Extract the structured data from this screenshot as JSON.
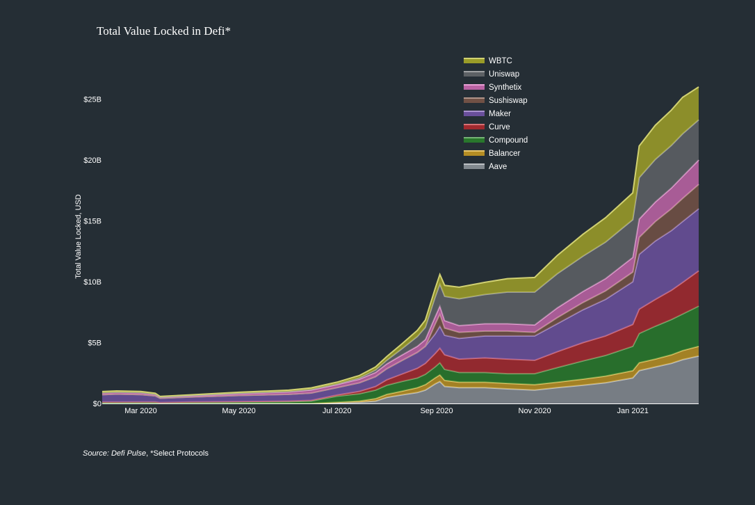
{
  "chart_data": {
    "type": "area",
    "stacked": true,
    "title": "Total Value Locked in Defi*",
    "xlabel": "",
    "ylabel": "Total Value Locked, USD",
    "x_start": "2020-02-06",
    "x_end": "2021-02-11",
    "xlim": [
      "2020-02-06",
      "2021-02-11"
    ],
    "ylim": [
      0,
      28
    ],
    "ytick_values": [
      0,
      5,
      10,
      15,
      20,
      25
    ],
    "ytick_labels": [
      "$0",
      "$5B",
      "$10B",
      "$15B",
      "$20B",
      "$25B"
    ],
    "xtick_dates": [
      "2020-03-01",
      "2020-05-01",
      "2020-07-01",
      "2020-09-01",
      "2020-11-01",
      "2021-01-01"
    ],
    "xtick_labels": [
      "Mar 2020",
      "May 2020",
      "Jul 2020",
      "Sep 2020",
      "Nov 2020",
      "Jan 2021"
    ],
    "grid": false,
    "legend_position": "top-right",
    "x": [
      "2020-02-06",
      "2020-02-15",
      "2020-03-01",
      "2020-03-10",
      "2020-03-13",
      "2020-04-01",
      "2020-05-01",
      "2020-06-01",
      "2020-06-15",
      "2020-07-01",
      "2020-07-15",
      "2020-07-25",
      "2020-08-01",
      "2020-08-10",
      "2020-08-20",
      "2020-08-25",
      "2020-08-31",
      "2020-09-03",
      "2020-09-06",
      "2020-09-15",
      "2020-10-01",
      "2020-10-15",
      "2020-11-01",
      "2020-11-15",
      "2020-12-01",
      "2020-12-15",
      "2021-01-01",
      "2021-01-05",
      "2021-01-15",
      "2021-01-25",
      "2021-02-01",
      "2021-02-11"
    ],
    "series": [
      {
        "name": "Aave",
        "color": "#9aa0a6",
        "values": [
          0,
          0,
          0,
          0,
          0,
          0,
          0,
          0,
          0,
          0.05,
          0.1,
          0.2,
          0.5,
          0.7,
          0.9,
          1.1,
          1.6,
          1.8,
          1.4,
          1.3,
          1.3,
          1.2,
          1.1,
          1.3,
          1.5,
          1.7,
          2.1,
          2.7,
          3.0,
          3.3,
          3.6,
          3.9
        ]
      },
      {
        "name": "Balancer",
        "color": "#d9a520",
        "values": [
          0,
          0,
          0,
          0,
          0,
          0,
          0,
          0,
          0,
          0.05,
          0.1,
          0.2,
          0.25,
          0.3,
          0.4,
          0.45,
          0.5,
          0.55,
          0.5,
          0.45,
          0.45,
          0.45,
          0.45,
          0.45,
          0.5,
          0.55,
          0.6,
          0.65,
          0.65,
          0.7,
          0.75,
          0.8
        ]
      },
      {
        "name": "Compound",
        "color": "#2a8a2a",
        "values": [
          0.1,
          0.1,
          0.1,
          0.1,
          0.06,
          0.1,
          0.12,
          0.15,
          0.2,
          0.5,
          0.6,
          0.7,
          0.75,
          0.8,
          0.8,
          0.85,
          0.9,
          1.0,
          0.9,
          0.8,
          0.8,
          0.8,
          0.9,
          1.2,
          1.5,
          1.7,
          2.0,
          2.4,
          2.7,
          2.9,
          3.0,
          3.3
        ]
      },
      {
        "name": "Curve",
        "color": "#c0282d",
        "values": [
          0.02,
          0.02,
          0.03,
          0.03,
          0.02,
          0.03,
          0.04,
          0.05,
          0.06,
          0.1,
          0.2,
          0.3,
          0.45,
          0.6,
          0.8,
          0.9,
          1.1,
          1.2,
          1.2,
          1.1,
          1.2,
          1.2,
          1.1,
          1.3,
          1.5,
          1.6,
          1.8,
          2.0,
          2.2,
          2.4,
          2.6,
          2.9
        ]
      },
      {
        "name": "Maker",
        "color": "#7a58b5",
        "values": [
          0.6,
          0.65,
          0.6,
          0.5,
          0.35,
          0.4,
          0.5,
          0.55,
          0.6,
          0.6,
          0.7,
          0.8,
          0.9,
          1.1,
          1.3,
          1.4,
          1.6,
          1.8,
          1.6,
          1.7,
          1.8,
          1.9,
          2.0,
          2.3,
          2.7,
          3.0,
          3.5,
          4.5,
          4.8,
          4.9,
          5.0,
          5.1
        ]
      },
      {
        "name": "Sushiswap",
        "color": "#855a4a",
        "values": [
          0,
          0,
          0,
          0,
          0,
          0,
          0,
          0,
          0,
          0,
          0,
          0,
          0,
          0,
          0,
          0,
          0.8,
          1.0,
          0.6,
          0.5,
          0.4,
          0.4,
          0.3,
          0.5,
          0.6,
          0.7,
          0.8,
          1.4,
          1.6,
          1.8,
          1.9,
          2.0
        ]
      },
      {
        "name": "Synthetix",
        "color": "#e070c0",
        "values": [
          0.15,
          0.15,
          0.15,
          0.12,
          0.08,
          0.1,
          0.15,
          0.2,
          0.25,
          0.25,
          0.3,
          0.35,
          0.4,
          0.45,
          0.5,
          0.55,
          0.6,
          0.65,
          0.6,
          0.55,
          0.6,
          0.6,
          0.6,
          0.8,
          0.9,
          1.0,
          1.2,
          1.5,
          1.6,
          1.7,
          1.8,
          2.0
        ]
      },
      {
        "name": "Uniswap",
        "color": "#6b6e72",
        "values": [
          0.01,
          0.01,
          0.01,
          0.01,
          0.01,
          0.02,
          0.03,
          0.04,
          0.05,
          0.05,
          0.1,
          0.2,
          0.3,
          0.5,
          0.8,
          1.0,
          1.6,
          1.8,
          2.0,
          2.2,
          2.4,
          2.6,
          2.7,
          2.8,
          2.9,
          3.0,
          3.1,
          3.4,
          3.5,
          3.5,
          3.5,
          3.3
        ]
      },
      {
        "name": "WBTC",
        "color": "#b8b826",
        "values": [
          0.1,
          0.1,
          0.1,
          0.08,
          0.06,
          0.06,
          0.08,
          0.1,
          0.12,
          0.15,
          0.2,
          0.25,
          0.3,
          0.4,
          0.5,
          0.6,
          0.7,
          0.8,
          0.9,
          0.95,
          1.0,
          1.1,
          1.2,
          1.5,
          1.8,
          2.0,
          2.2,
          2.6,
          2.8,
          2.9,
          3.0,
          2.7
        ]
      }
    ]
  },
  "source": {
    "prefix": "Source: Defi Pulse",
    "suffix": ", *Select Protocols"
  }
}
